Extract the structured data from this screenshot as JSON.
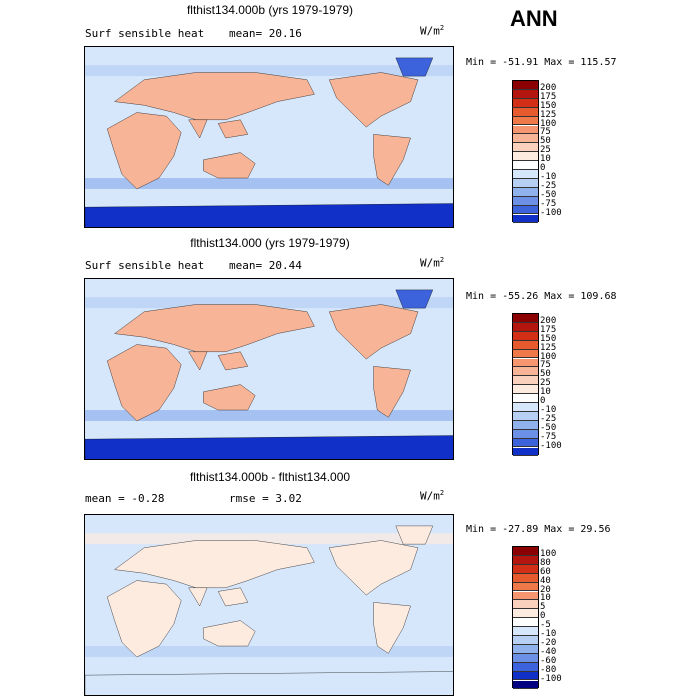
{
  "season": "ANN",
  "panels": [
    {
      "title": "flthist134.000b (yrs 1979-1979)",
      "left_label": "Surf sensible heat",
      "stat_label": "mean=",
      "stat_value": "20.16",
      "stat2_label": "",
      "stat2_value": "",
      "units_base": "W/m",
      "units_exp": "2",
      "minmax": "Min = -51.91 Max = 115.57",
      "colorbar": {
        "levels": [
          "200",
          "175",
          "150",
          "125",
          "100",
          "75",
          "50",
          "25",
          "10",
          "0",
          "-10",
          "-25",
          "-50",
          "-75",
          "-100"
        ],
        "colors": [
          "#8b0000",
          "#b5150f",
          "#d32f16",
          "#e75a2e",
          "#f0794a",
          "#f59670",
          "#f8b496",
          "#fad1bd",
          "#fdebdf",
          "#ffffff",
          "#d6e6fb",
          "#b7cff3",
          "#8fb1ec",
          "#6b90e6",
          "#3d63dc",
          "#1030c8"
        ]
      },
      "map": {
        "type": "global-field",
        "ocean_color": "#d6e6fb",
        "southern_ocean_color": "#1030c8",
        "land_color": "#f8b496"
      }
    },
    {
      "title": "flthist134.000 (yrs 1979-1979)",
      "left_label": "Surf sensible heat",
      "stat_label": "mean=",
      "stat_value": "20.44",
      "stat2_label": "",
      "stat2_value": "",
      "units_base": "W/m",
      "units_exp": "2",
      "minmax": "Min = -55.26 Max = 109.68",
      "colorbar": {
        "levels": [
          "200",
          "175",
          "150",
          "125",
          "100",
          "75",
          "50",
          "25",
          "10",
          "0",
          "-10",
          "-25",
          "-50",
          "-75",
          "-100"
        ],
        "colors": [
          "#8b0000",
          "#b5150f",
          "#d32f16",
          "#e75a2e",
          "#f0794a",
          "#f59670",
          "#f8b496",
          "#fad1bd",
          "#fdebdf",
          "#ffffff",
          "#d6e6fb",
          "#b7cff3",
          "#8fb1ec",
          "#6b90e6",
          "#3d63dc",
          "#1030c8"
        ]
      },
      "map": {
        "type": "global-field",
        "ocean_color": "#d6e6fb",
        "southern_ocean_color": "#1030c8",
        "land_color": "#f8b496"
      }
    },
    {
      "title": "flthist134.000b - flthist134.000",
      "left_label": "",
      "stat_label": "mean =",
      "stat_value": "-0.28",
      "stat2_label": "rmse =",
      "stat2_value": "3.02",
      "units_base": "W/m",
      "units_exp": "2",
      "minmax": "Min = -27.89 Max =  29.56",
      "colorbar": {
        "levels": [
          "100",
          "80",
          "60",
          "40",
          "20",
          "10",
          "5",
          "0",
          "-5",
          "-10",
          "-20",
          "-40",
          "-60",
          "-80",
          "-100"
        ],
        "colors": [
          "#8b0000",
          "#b5150f",
          "#d32f16",
          "#e75a2e",
          "#f0794a",
          "#f59670",
          "#fad1bd",
          "#fdebdf",
          "#ffffff",
          "#d6e6fb",
          "#b7cff3",
          "#8fb1ec",
          "#6b90e6",
          "#3d63dc",
          "#1030c8",
          "#000080"
        ]
      },
      "map": {
        "type": "difference-field",
        "ocean_color": "#d6e6fb",
        "southern_ocean_color": "#d6e6fb",
        "land_color": "#fdebdf"
      }
    }
  ]
}
